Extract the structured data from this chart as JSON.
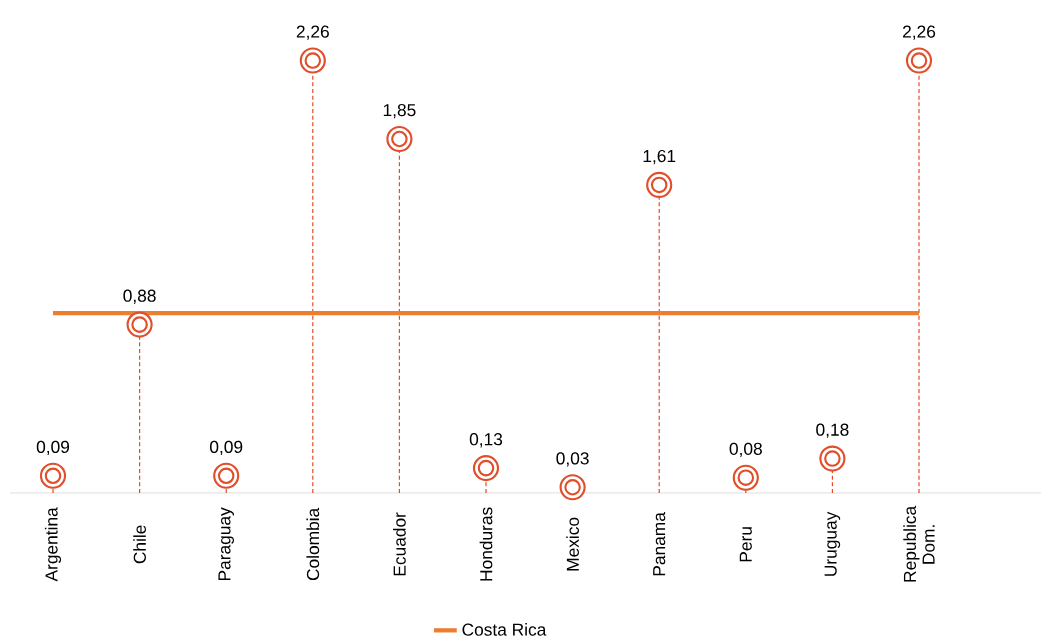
{
  "chart_data": {
    "type": "lollipop",
    "categories": [
      "Argentina",
      "Chile",
      "Paraguay",
      "Colombia",
      "Ecuador",
      "Honduras",
      "Mexico",
      "Panama",
      "Peru",
      "Uruguay",
      "Republica Dom."
    ],
    "series": [
      {
        "color": "#e04e2a",
        "marker": "circle",
        "line_style": "dashed",
        "values": [
          0.09,
          0.88,
          0.09,
          2.26,
          1.85,
          0.13,
          0.03,
          1.61,
          0.08,
          0.18,
          2.26
        ],
        "value_labels": [
          "0,09",
          "0,88",
          "0,09",
          "2,26",
          "1,85",
          "0,13",
          "0,03",
          "1,61",
          "0,08",
          "0,18",
          "2,26"
        ]
      },
      {
        "type": "line",
        "name": "Costa Rica",
        "color": "#ed7d31",
        "marker": "none",
        "line_style": "solid",
        "values": [
          0.94,
          0.94,
          0.94,
          0.94,
          0.94,
          0.94,
          0.94,
          0.94,
          0.94,
          0.94,
          0.94
        ]
      }
    ],
    "legend": "bottom"
  }
}
